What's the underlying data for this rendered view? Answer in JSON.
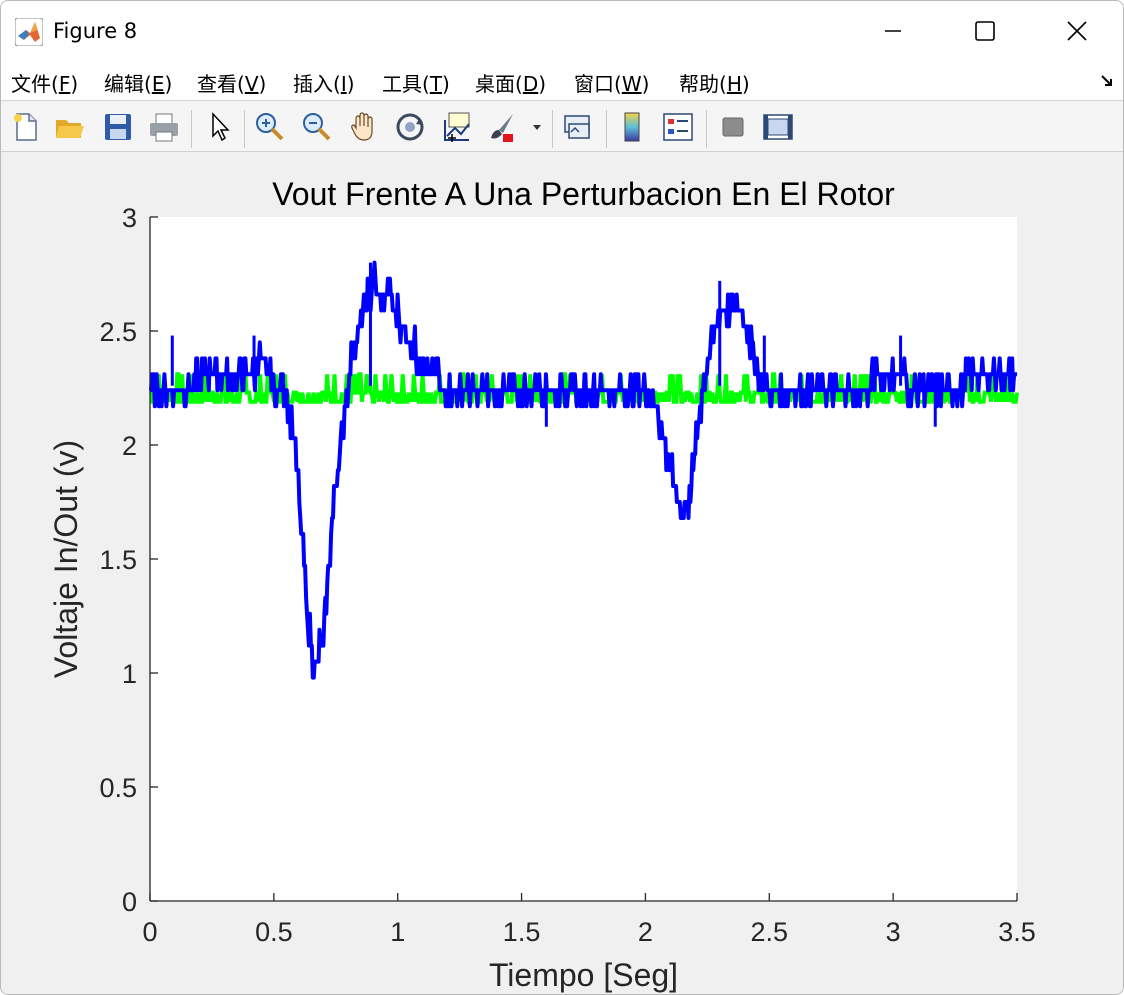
{
  "window": {
    "title": "Figure 8",
    "minimize_glyph": "—",
    "close_glyph": "✕"
  },
  "menu": {
    "items": [
      {
        "label": "文件(",
        "key": "F",
        "suffix": ")"
      },
      {
        "label": "编辑(",
        "key": "E",
        "suffix": ")"
      },
      {
        "label": "查看(",
        "key": "V",
        "suffix": ")"
      },
      {
        "label": "插入(",
        "key": "I",
        "suffix": ")"
      },
      {
        "label": "工具(",
        "key": "T",
        "suffix": ")"
      },
      {
        "label": "桌面(",
        "key": "D",
        "suffix": ")"
      },
      {
        "label": "窗口(",
        "key": "W",
        "suffix": ")"
      },
      {
        "label": "帮助(",
        "key": "H",
        "suffix": ")"
      }
    ]
  },
  "toolbar": {
    "icons": [
      "new-file-icon",
      "open-folder-icon",
      "save-icon",
      "print-icon",
      "pointer-icon",
      "zoom-in-icon",
      "zoom-out-icon",
      "pan-hand-icon",
      "rotate-3d-icon",
      "data-tips-icon",
      "brush-icon",
      "brush-dropdown-icon",
      "link-plot-icon",
      "colorbar-icon",
      "legend-icon",
      "hide-plot-tools-icon",
      "show-plot-tools-icon"
    ]
  },
  "colors": {
    "vout": "#0000ff",
    "vin": "#00ff00",
    "axes_bg": "#ffffff",
    "figure_bg": "#f0f0f0"
  },
  "chart_data": {
    "type": "line",
    "title": "Vout Frente A Una Perturbacion En El Rotor",
    "xlabel": "Tiempo [Seg]",
    "ylabel": "Voltaje In/Out (v)",
    "xlim": [
      0,
      3.5
    ],
    "ylim": [
      0,
      3
    ],
    "xticks": [
      "0",
      "0.5",
      "1",
      "1.5",
      "2",
      "2.5",
      "3",
      "3.5"
    ],
    "yticks": [
      "0",
      "0.5",
      "1",
      "1.5",
      "2",
      "2.5",
      "3"
    ],
    "grid": false,
    "legend": "none",
    "series": [
      {
        "color": "#00ff00",
        "x": [
          0,
          0.5,
          1.0,
          1.5,
          2.0,
          2.5,
          3.0,
          3.5
        ],
        "y": [
          2.2,
          2.2,
          2.2,
          2.2,
          2.2,
          2.2,
          2.2,
          2.2
        ],
        "band": [
          2.16,
          2.31
        ]
      },
      {
        "color": "#0000ff",
        "x": [
          0.0,
          0.1,
          0.2,
          0.3,
          0.4,
          0.45,
          0.5,
          0.55,
          0.58,
          0.6,
          0.62,
          0.64,
          0.66,
          0.68,
          0.7,
          0.72,
          0.75,
          0.78,
          0.8,
          0.84,
          0.88,
          0.9,
          0.94,
          0.98,
          1.02,
          1.08,
          1.12,
          1.2,
          1.3,
          1.4,
          1.5,
          1.6,
          1.7,
          1.8,
          1.9,
          2.0,
          2.05,
          2.08,
          2.11,
          2.13,
          2.15,
          2.17,
          2.2,
          2.23,
          2.27,
          2.3,
          2.35,
          2.4,
          2.45,
          2.5,
          2.6,
          2.7,
          2.8,
          2.9,
          3.0,
          3.05,
          3.1,
          3.2,
          3.3,
          3.4,
          3.5
        ],
        "y": [
          2.22,
          2.25,
          2.28,
          2.3,
          2.33,
          2.36,
          2.27,
          2.22,
          2.05,
          1.8,
          1.5,
          1.2,
          1.06,
          1.08,
          1.15,
          1.45,
          1.85,
          2.1,
          2.3,
          2.5,
          2.65,
          2.7,
          2.68,
          2.62,
          2.52,
          2.4,
          2.3,
          2.26,
          2.25,
          2.25,
          2.24,
          2.23,
          2.25,
          2.24,
          2.25,
          2.23,
          2.15,
          2.0,
          1.85,
          1.75,
          1.7,
          1.75,
          1.95,
          2.25,
          2.45,
          2.58,
          2.62,
          2.55,
          2.35,
          2.25,
          2.23,
          2.25,
          2.24,
          2.27,
          2.32,
          2.28,
          2.25,
          2.24,
          2.28,
          2.33,
          2.3
        ]
      }
    ]
  }
}
